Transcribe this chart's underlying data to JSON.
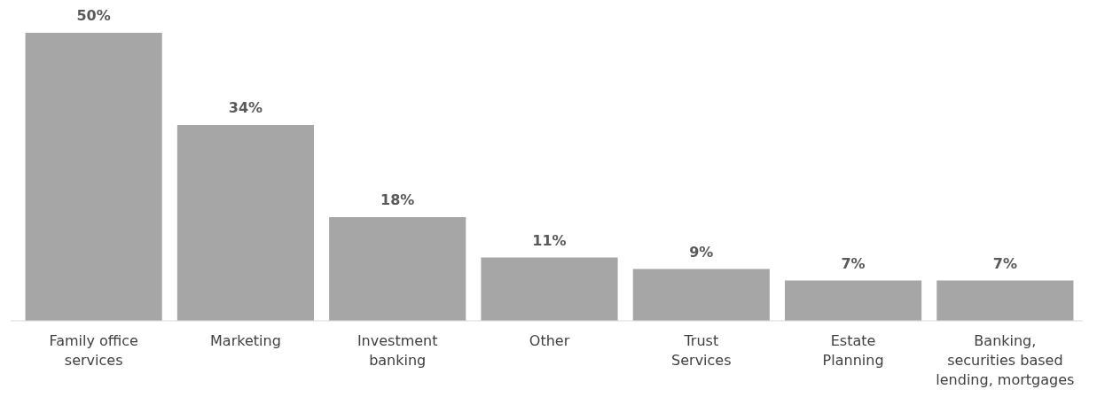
{
  "chart_data": {
    "type": "bar",
    "categories": [
      "Family office\nservices",
      "Marketing",
      "Investment\nbanking",
      "Other",
      "Trust\nServices",
      "Estate\nPlanning",
      "Banking,\nsecurities based\nlending, mortgages"
    ],
    "values": [
      50,
      34,
      18,
      11,
      9,
      7,
      7
    ],
    "value_labels": [
      "50%",
      "34%",
      "18%",
      "11%",
      "9%",
      "7%",
      "7%"
    ],
    "color": "#a6a6a6"
  }
}
